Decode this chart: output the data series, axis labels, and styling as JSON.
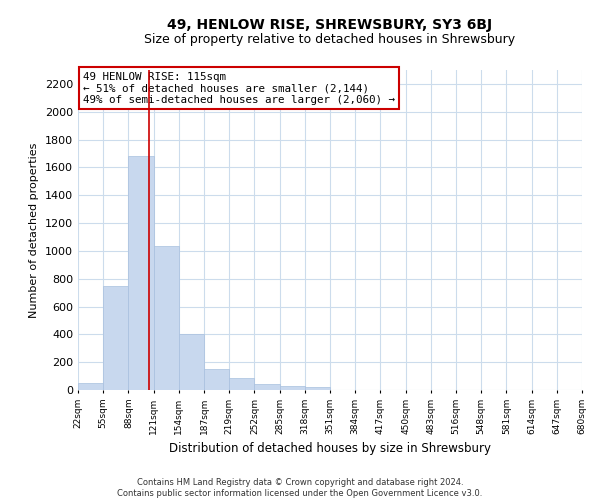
{
  "title": "49, HENLOW RISE, SHREWSBURY, SY3 6BJ",
  "subtitle": "Size of property relative to detached houses in Shrewsbury",
  "xlabel": "Distribution of detached houses by size in Shrewsbury",
  "ylabel": "Number of detached properties",
  "bar_values": [
    50,
    745,
    1680,
    1035,
    405,
    148,
    83,
    43,
    28,
    18,
    0,
    0,
    0,
    0,
    0,
    0,
    0,
    0,
    0,
    0
  ],
  "bar_labels": [
    "22sqm",
    "55sqm",
    "88sqm",
    "121sqm",
    "154sqm",
    "187sqm",
    "219sqm",
    "252sqm",
    "285sqm",
    "318sqm",
    "351sqm",
    "384sqm",
    "417sqm",
    "450sqm",
    "483sqm",
    "516sqm",
    "548sqm",
    "581sqm",
    "614sqm",
    "647sqm",
    "680sqm"
  ],
  "bar_color": "#c8d8ee",
  "bar_edge_color": "#a8c0de",
  "vline_color": "#cc0000",
  "ylim": [
    0,
    2300
  ],
  "yticks": [
    0,
    200,
    400,
    600,
    800,
    1000,
    1200,
    1400,
    1600,
    1800,
    2000,
    2200
  ],
  "annotation_title": "49 HENLOW RISE: 115sqm",
  "annotation_line1": "← 51% of detached houses are smaller (2,144)",
  "annotation_line2": "49% of semi-detached houses are larger (2,060) →",
  "footer_line1": "Contains HM Land Registry data © Crown copyright and database right 2024.",
  "footer_line2": "Contains public sector information licensed under the Open Government Licence v3.0.",
  "background_color": "#ffffff",
  "grid_color": "#ccdcec",
  "title_fontsize": 10,
  "subtitle_fontsize": 9
}
